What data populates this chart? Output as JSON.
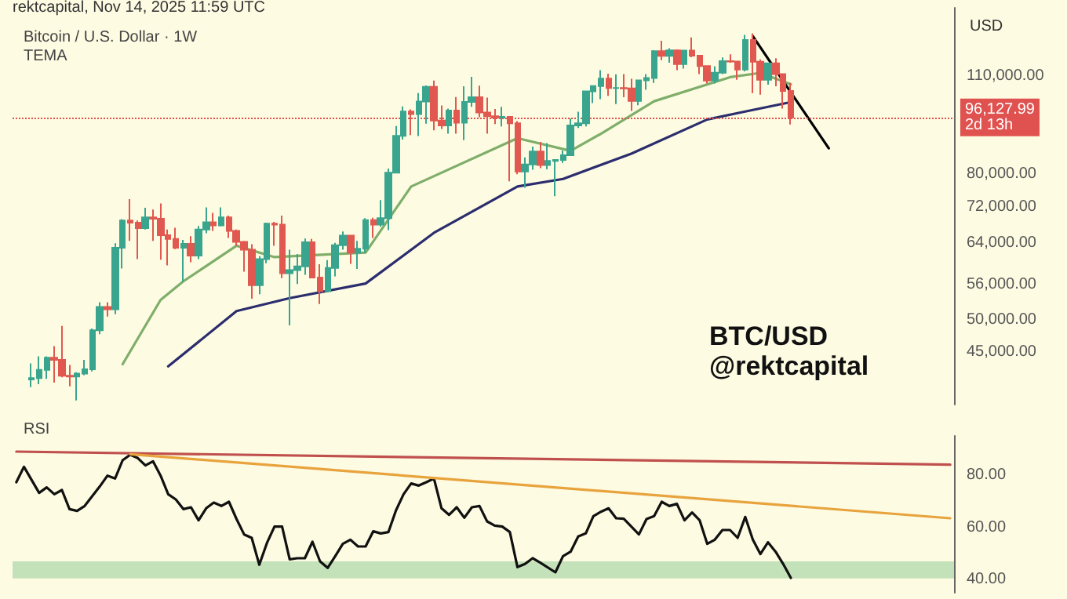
{
  "chart_data": [
    {
      "type": "candlestick",
      "title": "Bitcoin / U.S. Dollar · 1W",
      "subtitle": "TEMA",
      "ylabel": "USD",
      "annotations": [
        "rektcapital, Nov 14, 2025 11:59 UTC",
        "BTC/USD",
        "@rektcapital"
      ],
      "log": "y",
      "tick_labels": "y",
      "grid": false,
      "categories": [
        null,
        null,
        null,
        null,
        null,
        null,
        null,
        null,
        null,
        null,
        null,
        null,
        null,
        null,
        null,
        null,
        null,
        null,
        null,
        null,
        null,
        null,
        null,
        null,
        null,
        null,
        null,
        null,
        null,
        null,
        null,
        null,
        null,
        null,
        null,
        null,
        null,
        null,
        null,
        null,
        null,
        null,
        null,
        null,
        null,
        null,
        null,
        null,
        null,
        null,
        null,
        null,
        null,
        null,
        null,
        null,
        null,
        null,
        null,
        null,
        null,
        null,
        null,
        null,
        null,
        null,
        null,
        null,
        null,
        null,
        null,
        null,
        null,
        null,
        null,
        null,
        null,
        null,
        null,
        null,
        null,
        null,
        null,
        null,
        null,
        null,
        null,
        null,
        null,
        null,
        null,
        null,
        null,
        null,
        null,
        null,
        null,
        null,
        null,
        null,
        null,
        null,
        null,
        null,
        null,
        null,
        null,
        null,
        null,
        null,
        null,
        null,
        null,
        null,
        null,
        null,
        null,
        null,
        null,
        null,
        null,
        null,
        null,
        null
      ],
      "ohlc": [
        null,
        null,
        [
          41200,
          43400,
          40200,
          41400
        ],
        [
          41400,
          44400,
          40600,
          42500
        ],
        [
          42500,
          44400,
          41300,
          44200
        ],
        [
          44200,
          45900,
          40800,
          43900
        ],
        [
          43900,
          49000,
          41500,
          41700
        ],
        [
          41700,
          43200,
          40300,
          41600
        ],
        [
          41600,
          42200,
          38500,
          42000
        ],
        [
          42000,
          43900,
          41800,
          42600
        ],
        [
          42600,
          48600,
          42300,
          48300
        ],
        [
          48300,
          52900,
          47700,
          52100
        ],
        [
          52100,
          52900,
          50500,
          51700
        ],
        [
          51700,
          64000,
          50900,
          63100
        ],
        [
          63100,
          69200,
          59000,
          68900
        ],
        [
          68900,
          73800,
          64500,
          68400
        ],
        [
          68400,
          68900,
          60800,
          67200
        ],
        [
          67200,
          71800,
          66900,
          69600
        ],
        [
          69600,
          71400,
          64500,
          69300
        ],
        [
          69300,
          72800,
          60700,
          65700
        ],
        [
          65700,
          66900,
          59600,
          64900
        ],
        [
          64900,
          67300,
          62800,
          63100
        ],
        [
          63100,
          64700,
          56500,
          63900
        ],
        [
          63900,
          65500,
          60200,
          61500
        ],
        [
          61500,
          67700,
          60800,
          66900
        ],
        [
          66900,
          71900,
          66100,
          68500
        ],
        [
          68500,
          70600,
          66600,
          67800
        ],
        [
          67800,
          71900,
          67600,
          69600
        ],
        [
          69600,
          70000,
          65100,
          66600
        ],
        [
          66600,
          66900,
          63400,
          64300
        ],
        [
          64300,
          64500,
          58400,
          62700
        ],
        [
          62700,
          63800,
          53500,
          55900
        ],
        [
          55900,
          61400,
          54300,
          60800
        ],
        [
          60800,
          68400,
          60000,
          68200
        ],
        [
          68200,
          68600,
          63500,
          68000
        ],
        [
          68000,
          70000,
          57200,
          58100
        ],
        [
          58100,
          62700,
          49100,
          58700
        ],
        [
          58700,
          61800,
          56100,
          59400
        ],
        [
          59400,
          65000,
          57800,
          64200
        ],
        [
          64200,
          64900,
          57200,
          57300
        ],
        [
          57300,
          59800,
          52600,
          54800
        ],
        [
          54800,
          60600,
          54600,
          59100
        ],
        [
          59100,
          64100,
          57500,
          63600
        ],
        [
          63600,
          66500,
          62700,
          65600
        ],
        [
          65600,
          65600,
          59900,
          62100
        ],
        [
          62100,
          64500,
          58900,
          62900
        ],
        [
          62900,
          69400,
          62000,
          69000
        ],
        [
          69000,
          69500,
          65100,
          68000
        ],
        [
          68000,
          73600,
          67500,
          69400
        ],
        [
          69400,
          81500,
          66800,
          80400
        ],
        [
          80400,
          93500,
          80400,
          90600
        ],
        [
          90600,
          99600,
          89500,
          98000
        ],
        [
          98000,
          98700,
          90800,
          97200
        ],
        [
          97200,
          104000,
          90500,
          101200
        ],
        [
          101200,
          106600,
          94200,
          106100
        ],
        [
          106100,
          108300,
          92200,
          95200
        ],
        [
          95200,
          99900,
          92600,
          93700
        ],
        [
          93700,
          98900,
          91200,
          98300
        ],
        [
          98300,
          102700,
          91200,
          94500
        ],
        [
          94500,
          106300,
          89300,
          101100
        ],
        [
          101100,
          109600,
          99500,
          102600
        ],
        [
          102600,
          106500,
          96200,
          97700
        ],
        [
          97700,
          102500,
          91200,
          96500
        ],
        [
          96500,
          98800,
          94100,
          96100
        ],
        [
          96100,
          99500,
          93400,
          96300
        ],
        [
          96300,
          96500,
          78200,
          94300
        ],
        [
          94300,
          95000,
          80000,
          80700
        ],
        [
          80700,
          84500,
          76600,
          82600
        ],
        [
          82600,
          87500,
          81200,
          86100
        ],
        [
          86100,
          88800,
          81600,
          82400
        ],
        [
          82400,
          88500,
          81300,
          83500
        ],
        [
          83500,
          83900,
          74500,
          83800
        ],
        [
          83800,
          86400,
          83000,
          85100
        ],
        [
          85100,
          95800,
          85100,
          93700
        ],
        [
          93700,
          97900,
          92900,
          94300
        ],
        [
          94300,
          104800,
          93400,
          104600
        ],
        [
          104600,
          106600,
          100700,
          106400
        ],
        [
          106400,
          112000,
          102000,
          109000
        ],
        [
          109000,
          110700,
          103100,
          105700
        ],
        [
          105700,
          110500,
          100400,
          105700
        ],
        [
          105700,
          110600,
          102600,
          105600
        ],
        [
          105600,
          108900,
          98200,
          101400
        ],
        [
          101400,
          108500,
          100000,
          108400
        ],
        [
          108400,
          110600,
          105100,
          109200
        ],
        [
          109200,
          119500,
          107500,
          119100
        ],
        [
          119100,
          123200,
          115700,
          117300
        ],
        [
          117300,
          120200,
          114700,
          119400
        ],
        [
          119400,
          119800,
          112000,
          114200
        ],
        [
          114200,
          119400,
          112600,
          119300
        ],
        [
          119300,
          124500,
          116800,
          117400
        ],
        [
          117400,
          117600,
          110600,
          113500
        ],
        [
          113500,
          113700,
          107300,
          108300
        ],
        [
          108300,
          113400,
          107300,
          111100
        ],
        [
          111100,
          116700,
          110600,
          115300
        ],
        [
          115300,
          117900,
          114700,
          115200
        ],
        [
          115200,
          115400,
          108600,
          112200
        ],
        [
          112200,
          125500,
          111600,
          123500
        ],
        [
          123500,
          126200,
          104000,
          115100
        ],
        [
          115100,
          116000,
          103500,
          108600
        ],
        [
          108600,
          114600,
          106900,
          114500
        ],
        [
          114500,
          116400,
          106300,
          110600
        ],
        [
          110600,
          110800,
          98900,
          104700
        ],
        [
          104700,
          107500,
          94000,
          96127.99
        ],
        null,
        null,
        null,
        null,
        null,
        null,
        null,
        null,
        null,
        null,
        null,
        null,
        null,
        null,
        null,
        null,
        null,
        null,
        null,
        null,
        null
      ],
      "series": [
        {
          "type": "line",
          "color": "#7fae6a",
          "values": [
            null,
            null,
            null,
            null,
            null,
            null,
            null,
            null,
            null,
            null,
            null,
            null,
            null,
            null,
            43300,
            null,
            null,
            null,
            null,
            53300,
            null,
            null,
            56600,
            null,
            null,
            null,
            null,
            null,
            null,
            63500,
            null,
            null,
            null,
            null,
            61200,
            null,
            null,
            null,
            null,
            null,
            null,
            null,
            null,
            null,
            null,
            null,
            62100,
            null,
            null,
            null,
            null,
            null,
            76900,
            null,
            null,
            null,
            null,
            null,
            null,
            null,
            null,
            null,
            null,
            null,
            null,
            null,
            89900,
            null,
            null,
            null,
            null,
            null,
            null,
            86300,
            null,
            null,
            null,
            91200,
            null,
            null,
            null,
            null,
            null,
            null,
            101300,
            null,
            null,
            null,
            null,
            null,
            null,
            null,
            null,
            null,
            109500,
            null,
            null,
            null,
            111000,
            null,
            null,
            null,
            107000,
            null,
            null,
            null,
            null,
            null,
            null,
            null,
            null,
            null,
            null,
            null,
            null,
            null,
            null,
            null,
            null,
            null,
            null,
            null,
            null,
            null
          ]
        },
        {
          "type": "line",
          "color": "#2b2d6e",
          "values": [
            null,
            null,
            null,
            null,
            null,
            null,
            null,
            null,
            null,
            null,
            null,
            null,
            null,
            null,
            null,
            null,
            null,
            null,
            null,
            null,
            43000,
            null,
            null,
            null,
            null,
            null,
            null,
            null,
            null,
            51400,
            null,
            null,
            null,
            null,
            null,
            null,
            53600,
            null,
            null,
            null,
            null,
            null,
            null,
            null,
            null,
            null,
            56200,
            null,
            null,
            null,
            null,
            null,
            null,
            null,
            null,
            66200,
            null,
            null,
            null,
            null,
            null,
            null,
            null,
            null,
            null,
            null,
            76900,
            null,
            null,
            null,
            null,
            null,
            78800,
            null,
            null,
            null,
            null,
            null,
            null,
            null,
            null,
            85500,
            null,
            null,
            null,
            null,
            null,
            null,
            null,
            null,
            null,
            95500,
            null,
            null,
            null,
            97500,
            null,
            null,
            null,
            null,
            null,
            null,
            101000,
            null,
            null,
            null,
            null,
            null,
            null,
            null,
            null,
            null,
            null,
            null,
            null,
            null,
            null,
            null,
            null,
            null,
            null,
            null,
            null,
            null
          ]
        },
        {
          "type": "line",
          "color": "#000000",
          "values": [
            null,
            null,
            null,
            null,
            null,
            null,
            null,
            null,
            null,
            null,
            null,
            null,
            null,
            null,
            null,
            null,
            null,
            null,
            null,
            null,
            null,
            null,
            null,
            null,
            null,
            null,
            null,
            null,
            null,
            null,
            null,
            null,
            null,
            null,
            null,
            null,
            null,
            null,
            null,
            null,
            null,
            null,
            null,
            null,
            null,
            null,
            null,
            null,
            null,
            null,
            null,
            null,
            null,
            null,
            null,
            null,
            null,
            null,
            null,
            null,
            null,
            null,
            null,
            null,
            null,
            null,
            null,
            null,
            null,
            null,
            null,
            null,
            null,
            null,
            null,
            null,
            null,
            null,
            null,
            null,
            null,
            null,
            null,
            null,
            null,
            null,
            null,
            null,
            null,
            null,
            null,
            null,
            null,
            null,
            null,
            null,
            null,
            125000,
            null,
            null,
            null,
            null,
            null,
            null,
            null,
            null,
            null,
            87000,
            null,
            null,
            null,
            null,
            null,
            null,
            null,
            null,
            null,
            null,
            null,
            null,
            null,
            null,
            null,
            null
          ]
        }
      ],
      "ylim": [
        38000,
        137000
      ],
      "yticks": [
        {
          "value": 45000,
          "label": "45,000.00"
        },
        {
          "value": 50000,
          "label": "50,000.00"
        },
        {
          "value": 56000,
          "label": "56,000.00"
        },
        {
          "value": 64000,
          "label": "64,000.00"
        },
        {
          "value": 72000,
          "label": "72,000.00"
        },
        {
          "value": 80000,
          "label": "80,000.00"
        },
        {
          "value": 110000,
          "label": "110,000.00"
        }
      ],
      "ref_lines": [
        {
          "axis": "y",
          "value": 96127.99,
          "label": "96,127.99\n2d 13h",
          "color": "#e0524f",
          "line_style": "dotted"
        }
      ]
    },
    {
      "type": "line",
      "title": "RSI",
      "tick_labels": "y",
      "grid": false,
      "categories": [
        null,
        null,
        null,
        null,
        null,
        null,
        null,
        null,
        null,
        null,
        null,
        null,
        null,
        null,
        null,
        null,
        null,
        null,
        null,
        null,
        null,
        null,
        null,
        null,
        null,
        null,
        null,
        null,
        null,
        null,
        null,
        null,
        null,
        null,
        null,
        null,
        null,
        null,
        null,
        null,
        null,
        null,
        null,
        null,
        null,
        null,
        null,
        null,
        null,
        null,
        null,
        null,
        null,
        null,
        null,
        null,
        null,
        null,
        null,
        null,
        null,
        null,
        null,
        null,
        null,
        null,
        null,
        null,
        null,
        null,
        null,
        null,
        null,
        null,
        null,
        null,
        null,
        null,
        null,
        null,
        null,
        null,
        null,
        null,
        null,
        null,
        null,
        null,
        null,
        null,
        null,
        null,
        null,
        null,
        null,
        null,
        null,
        null,
        null,
        null,
        null,
        null,
        null,
        null,
        null,
        null,
        null,
        null,
        null,
        null,
        null,
        null,
        null,
        null,
        null,
        null,
        null,
        null,
        null,
        null,
        null,
        null,
        null,
        null
      ],
      "series": [
        {
          "color": "#111111",
          "values": [
            77.3,
            83.2,
            null,
            73.2,
            75.3,
            72.7,
            74.3,
            67,
            66.3,
            68.2,
            null,
            75.7,
            79.8,
            78.7,
            85.7,
            87.8,
            86.5,
            83.7,
            85.3,
            79.8,
            72.7,
            70.7,
            67,
            67.7,
            62.7,
            67.3,
            69.5,
            68.2,
            69.8,
            63.2,
            57.3,
            56,
            45.7,
            54,
            60.3,
            60.3,
            47.8,
            48.2,
            48.2,
            54.5,
            47,
            44.5,
            49,
            53.7,
            55.3,
            52.7,
            52.7,
            58.5,
            57.7,
            58.2,
            66.5,
            72.7,
            76.8,
            76,
            77.3,
            78.7,
            67.3,
            64.8,
            67.7,
            63.7,
            67.7,
            68.2,
            62.3,
            60.7,
            60.3,
            58.2,
            44.8,
            46,
            48.2,
            46.5,
            null,
            42.8,
            49,
            50.7,
            56.5,
            57.7,
            64.3,
            66,
            67.3,
            63.5,
            63.3,
            null,
            57.3,
            63.2,
            64.3,
            69.8,
            68.2,
            69,
            62.7,
            65.7,
            62.7,
            53.7,
            55.3,
            59,
            59,
            56,
            64,
            55.3,
            49.8,
            54.3,
            50.7,
            46,
            40.7,
            null,
            null,
            null,
            null,
            null,
            null,
            null,
            null,
            null,
            null,
            null,
            null,
            null,
            null,
            null,
            null,
            null,
            null,
            null,
            null,
            null
          ]
        },
        {
          "color": "#c0504d",
          "values": [
            89,
            null,
            null,
            null,
            null,
            null,
            null,
            null,
            null,
            null,
            null,
            null,
            null,
            null,
            null,
            null,
            null,
            null,
            null,
            null,
            null,
            null,
            null,
            null,
            null,
            null,
            null,
            null,
            null,
            null,
            null,
            null,
            null,
            null,
            null,
            null,
            null,
            null,
            null,
            null,
            null,
            null,
            null,
            null,
            null,
            null,
            null,
            null,
            null,
            null,
            null,
            null,
            null,
            null,
            null,
            null,
            null,
            null,
            null,
            null,
            null,
            null,
            null,
            null,
            null,
            null,
            null,
            null,
            null,
            null,
            null,
            null,
            null,
            null,
            null,
            null,
            null,
            null,
            null,
            null,
            null,
            null,
            null,
            null,
            null,
            null,
            null,
            null,
            null,
            null,
            null,
            null,
            null,
            null,
            null,
            null,
            null,
            null,
            null,
            null,
            null,
            null,
            null,
            null,
            null,
            null,
            null,
            null,
            null,
            null,
            null,
            null,
            null,
            null,
            null,
            null,
            null,
            null,
            null,
            null,
            null,
            null,
            null,
            84
          ]
        },
        {
          "color": "#e8a33d",
          "values": [
            null,
            null,
            null,
            null,
            null,
            null,
            null,
            null,
            null,
            null,
            null,
            null,
            null,
            null,
            null,
            88,
            null,
            null,
            null,
            null,
            null,
            null,
            null,
            null,
            null,
            null,
            null,
            null,
            null,
            null,
            null,
            null,
            null,
            null,
            null,
            null,
            null,
            null,
            null,
            null,
            null,
            null,
            null,
            null,
            null,
            null,
            null,
            null,
            null,
            null,
            null,
            null,
            null,
            null,
            null,
            null,
            null,
            null,
            null,
            null,
            null,
            null,
            null,
            null,
            null,
            null,
            null,
            null,
            null,
            null,
            null,
            null,
            null,
            null,
            null,
            null,
            null,
            null,
            null,
            null,
            null,
            null,
            null,
            null,
            null,
            null,
            null,
            null,
            null,
            null,
            null,
            null,
            null,
            null,
            null,
            null,
            null,
            null,
            null,
            null,
            null,
            null,
            null,
            null,
            null,
            null,
            null,
            null,
            null,
            null,
            null,
            null,
            null,
            null,
            null,
            null,
            null,
            null,
            null,
            null,
            null,
            null,
            null,
            63.5
          ]
        }
      ],
      "ylim": [
        35,
        95
      ],
      "yticks": [
        {
          "value": 40,
          "label": "40.00"
        },
        {
          "value": 60,
          "label": "60.00"
        },
        {
          "value": 80,
          "label": "80.00"
        }
      ],
      "bands": [
        {
          "axis": "y",
          "from": 40.5,
          "to": 47,
          "color": "#b5dcb0"
        }
      ]
    }
  ]
}
